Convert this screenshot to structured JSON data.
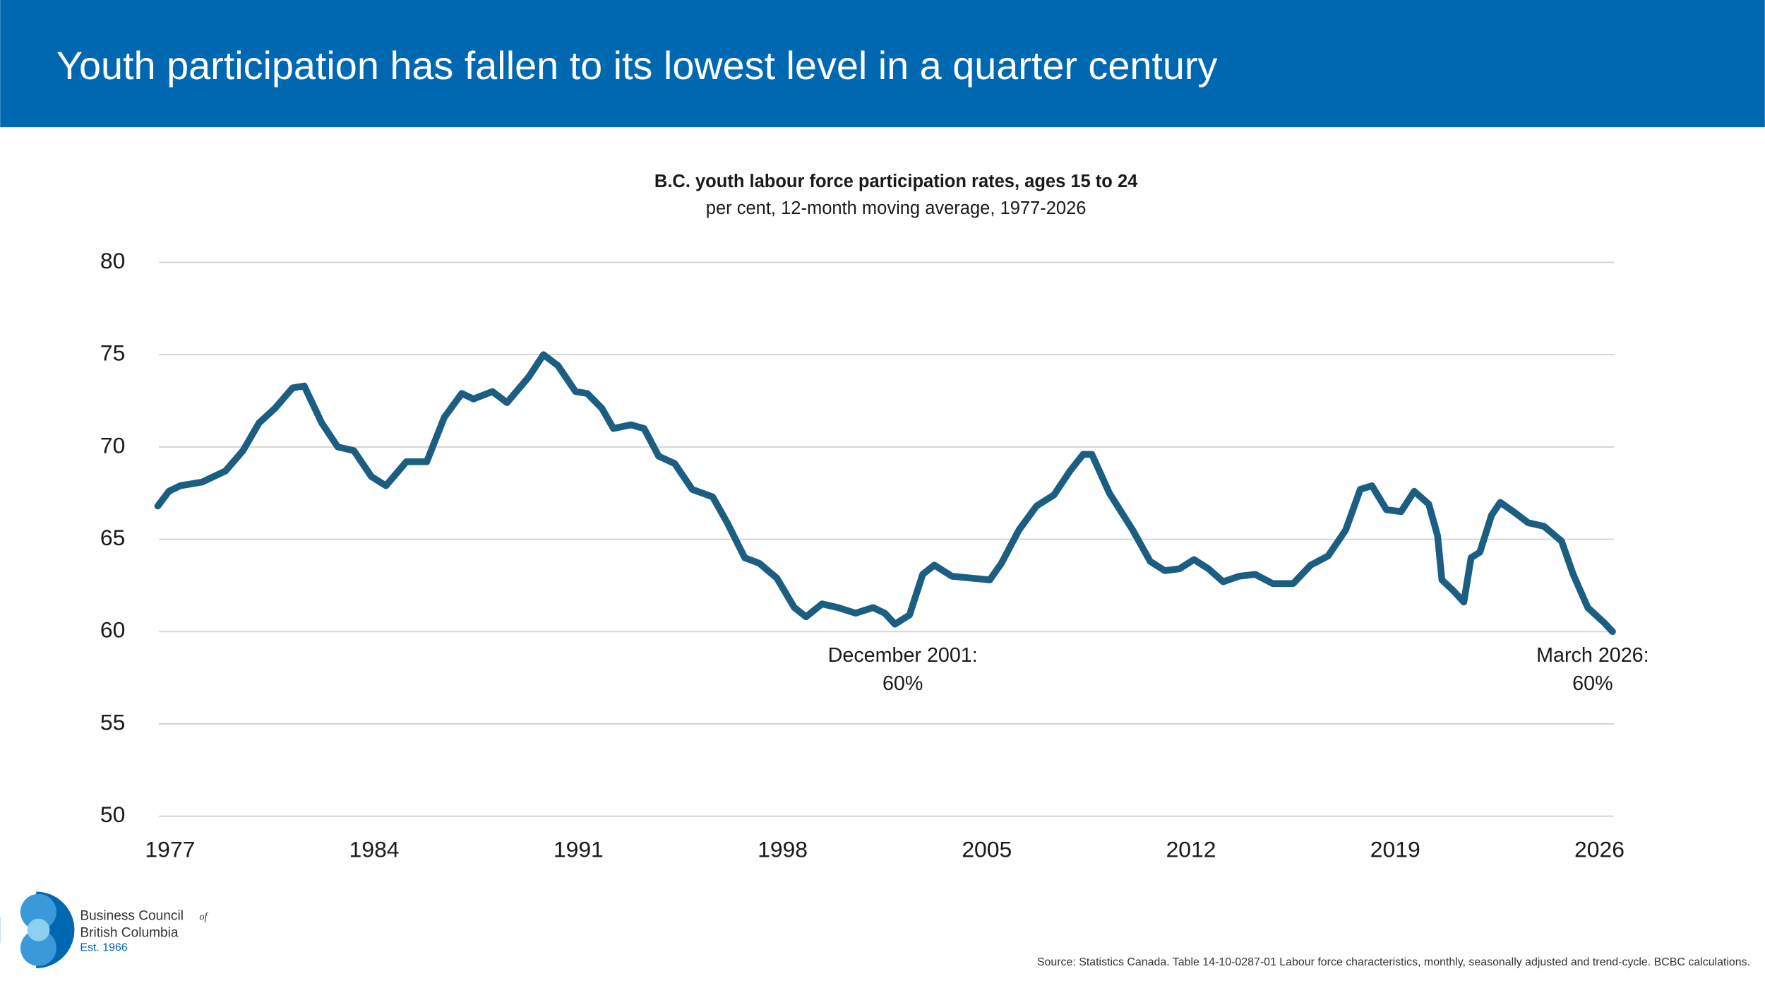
{
  "chart_data": {
    "type": "line",
    "title": "Youth participation has fallen to its lowest level in a quarter century",
    "subtitle": "B.C. youth labour force participation rates, ages 15 to 24",
    "note": "per cent, 12-month moving average, 1977-2026",
    "x": [
      1976.58,
      1976.96,
      1977.35,
      1978.1,
      1978.9,
      1979.5,
      1980.05,
      1980.6,
      1981.2,
      1981.6,
      1982.2,
      1982.75,
      1983.3,
      1983.9,
      1984.4,
      1985.1,
      1985.8,
      1986.4,
      1987.0,
      1987.4,
      1988.05,
      1988.55,
      1989.3,
      1989.8,
      1990.3,
      1990.9,
      1991.3,
      1991.8,
      1992.2,
      1992.8,
      1993.25,
      1993.75,
      1994.3,
      1994.9,
      1995.6,
      1996.1,
      1996.7,
      1997.2,
      1997.8,
      1998.4,
      1998.8,
      1999.35,
      1999.9,
      2000.5,
      2001.1,
      2001.5,
      2001.85,
      2002.35,
      2002.8,
      2003.2,
      2003.8,
      2004.45,
      2005.1,
      2005.5,
      2006.1,
      2006.7,
      2007.3,
      2007.85,
      2008.3,
      2008.6,
      2009.2,
      2010.0,
      2010.6,
      2011.1,
      2011.6,
      2012.1,
      2012.6,
      2013.1,
      2013.65,
      2014.2,
      2014.8,
      2015.5,
      2016.1,
      2016.7,
      2017.3,
      2017.8,
      2018.2,
      2018.7,
      2019.2,
      2019.65,
      2020.15,
      2020.45,
      2020.6,
      2021.0,
      2021.35,
      2021.6,
      2021.9,
      2022.3,
      2022.6,
      2023.05,
      2023.55,
      2024.1,
      2024.7,
      2025.1,
      2025.6,
      2026.15,
      2026.45
    ],
    "series": [
      {
        "name": "B.C. youth participation rate",
        "color": "#1b5e82",
        "values": [
          66.8,
          67.6,
          67.9,
          68.1,
          68.7,
          69.8,
          71.3,
          72.1,
          73.2,
          73.3,
          71.3,
          70.0,
          69.8,
          68.4,
          67.9,
          69.2,
          69.2,
          71.6,
          72.9,
          72.6,
          73.0,
          72.4,
          73.8,
          75.0,
          74.4,
          73.0,
          72.9,
          72.1,
          71.0,
          71.2,
          71.0,
          69.5,
          69.1,
          67.7,
          67.3,
          65.9,
          64.0,
          63.7,
          62.9,
          61.3,
          60.8,
          61.5,
          61.3,
          61.0,
          61.3,
          61.0,
          60.4,
          60.9,
          63.1,
          63.6,
          63.0,
          62.9,
          62.8,
          63.7,
          65.5,
          66.8,
          67.4,
          68.7,
          69.6,
          69.6,
          67.5,
          65.5,
          63.8,
          63.3,
          63.4,
          63.9,
          63.4,
          62.7,
          63.0,
          63.1,
          62.6,
          62.6,
          63.6,
          64.1,
          65.5,
          67.7,
          67.9,
          66.6,
          66.5,
          67.6,
          66.9,
          65.2,
          62.8,
          62.2,
          61.6,
          64.0,
          64.3,
          66.3,
          67.0,
          66.5,
          65.9,
          65.7,
          64.9,
          63.1,
          61.3,
          60.5,
          60.0
        ]
      }
    ],
    "xlim": [
      1976.5,
      2026.5
    ],
    "xticks": [
      1977,
      1984,
      1991,
      1998,
      2005,
      2012,
      2019,
      2026
    ],
    "ylim": [
      50,
      80
    ],
    "yticks": [
      50,
      55,
      60,
      65,
      70,
      75,
      80
    ],
    "grid": true,
    "annotations": [
      {
        "lines": [
          "December 2001:",
          "60%"
        ]
      },
      {
        "lines": [
          "March 2026:",
          "60%"
        ]
      }
    ],
    "source": "Source: Statistics Canada. Table 14-10-0287-01 Labour force characteristics, monthly, seasonally adjusted and trend-cycle. BCBC calculations."
  },
  "logo": {
    "name1": "Business Council",
    "of": "of",
    "name2": "British Columbia",
    "est": "Est. 1966"
  }
}
